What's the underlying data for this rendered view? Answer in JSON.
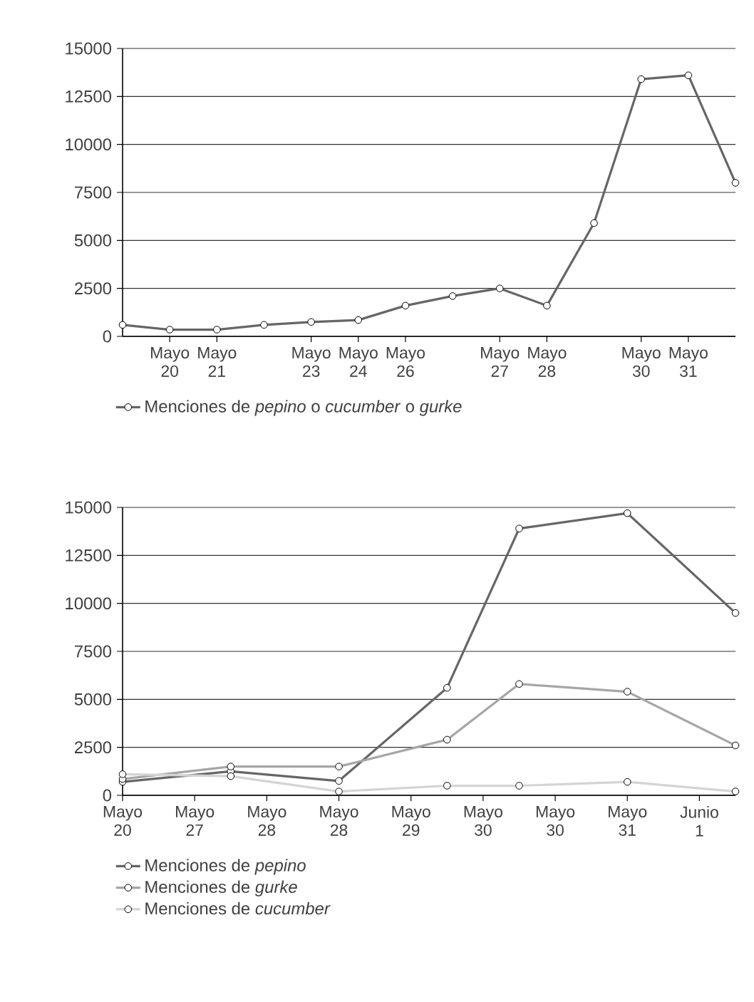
{
  "chart_data": [
    {
      "type": "line",
      "categories": [
        null,
        "Mayo 20",
        "Mayo 21",
        null,
        "Mayo 23",
        "Mayo 24",
        "Mayo 26",
        null,
        "Mayo 27",
        "Mayo 28",
        null,
        "Mayo 30",
        "Mayo 31",
        null
      ],
      "series": [
        {
          "name": "Menciones de *pepino* o *cucumber* o *gurke*",
          "color": "#666666",
          "values": [
            600,
            350,
            350,
            600,
            750,
            850,
            1600,
            2100,
            2500,
            1600,
            5900,
            13400,
            13600,
            8000
          ]
        }
      ],
      "ylim": [
        0,
        15000
      ],
      "yticks": [
        0,
        2500,
        5000,
        7500,
        10000,
        12500,
        15000
      ],
      "grid": "y",
      "legend": "bottom",
      "marker": "circle",
      "line_style": "solid"
    },
    {
      "type": "line",
      "categories": [
        "Mayo 20",
        null,
        "Mayo 27",
        null,
        "Mayo 28",
        null,
        "Mayo 28",
        null,
        "Mayo 29",
        null,
        "Mayo 30",
        null,
        "Mayo 30",
        null,
        "Mayo 31",
        null,
        "Junio 1",
        null
      ],
      "series": [
        {
          "name": "Menciones de *pepino*",
          "color": "#666666",
          "values": [
            700,
            null,
            null,
            1250,
            null,
            null,
            750,
            null,
            null,
            5600,
            null,
            13900,
            null,
            null,
            14700,
            null,
            null,
            9500
          ]
        },
        {
          "name": "Menciones de *gurke*",
          "color": "#a6a6a6",
          "values": [
            850,
            null,
            null,
            1500,
            null,
            null,
            1500,
            null,
            null,
            2900,
            null,
            5800,
            null,
            null,
            5400,
            null,
            null,
            2600
          ]
        },
        {
          "name": "Menciones de *cucumber*",
          "color": "#d4d4d4",
          "values": [
            1100,
            null,
            null,
            1000,
            null,
            null,
            200,
            null,
            null,
            500,
            null,
            500,
            null,
            null,
            700,
            null,
            null,
            200
          ]
        }
      ],
      "ylim": [
        0,
        15000
      ],
      "yticks": [
        0,
        2500,
        5000,
        7500,
        10000,
        12500,
        15000
      ],
      "grid": "y",
      "legend": "bottom",
      "marker": "circle",
      "line_style": "solid"
    }
  ]
}
